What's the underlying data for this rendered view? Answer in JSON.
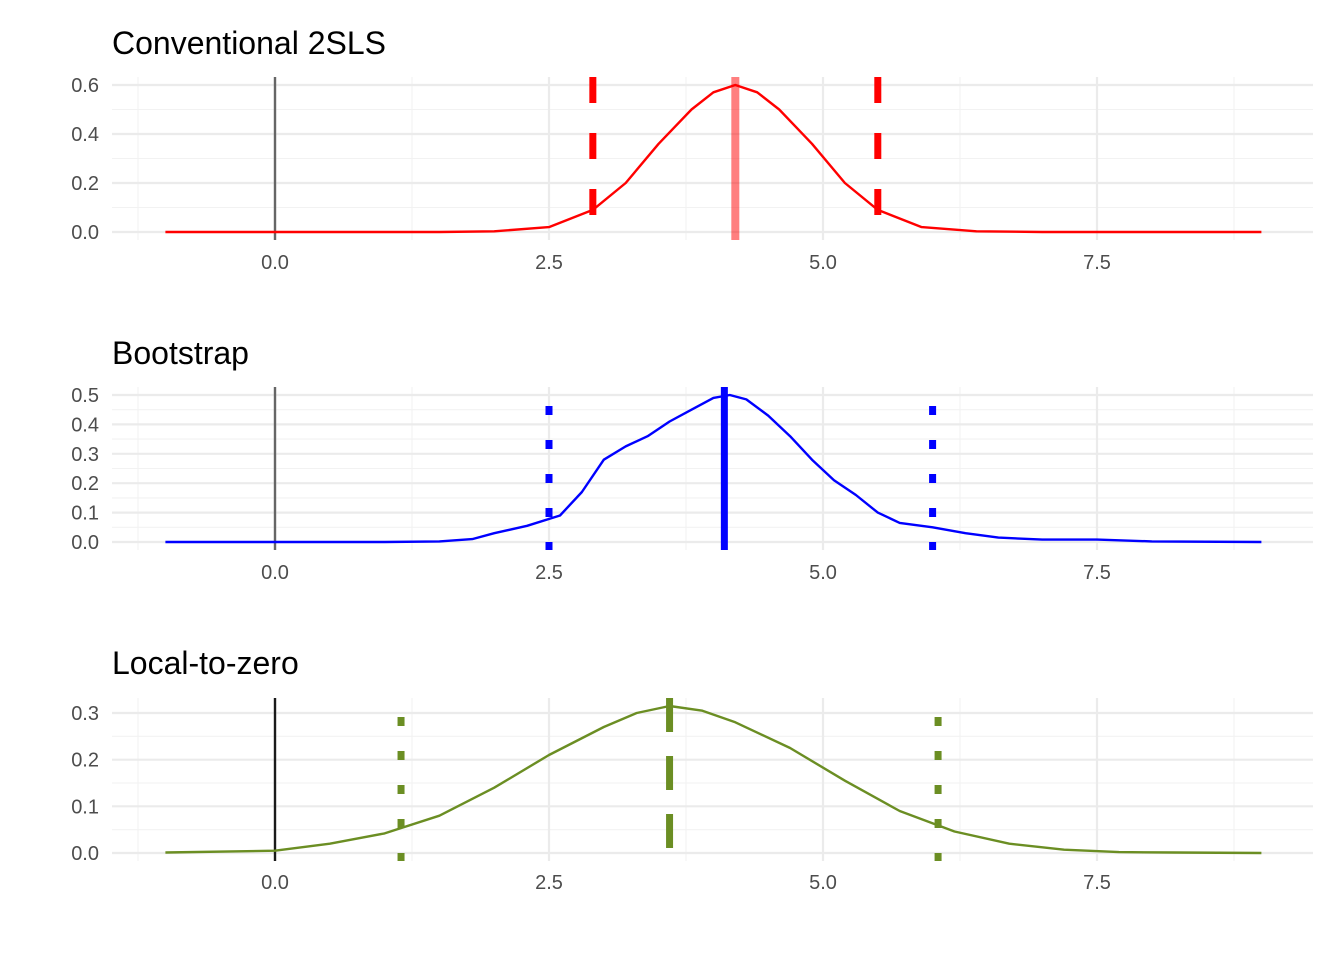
{
  "chart_data": [
    {
      "type": "line",
      "title": "Conventional 2SLS",
      "color": "#ff0000",
      "xlim": [
        -1.0,
        9.0
      ],
      "ylim": [
        0,
        0.6
      ],
      "x_ticks": [
        0.0,
        2.5,
        5.0,
        7.5
      ],
      "x_tick_labels": [
        "0.0",
        "2.5",
        "5.0",
        "7.5"
      ],
      "y_ticks": [
        0.0,
        0.2,
        0.4,
        0.6
      ],
      "y_tick_labels": [
        "0.0",
        "0.2",
        "0.4",
        "0.6"
      ],
      "density": {
        "x": [
          -1.0,
          0.0,
          1.0,
          1.5,
          2.0,
          2.5,
          2.9,
          3.2,
          3.5,
          3.8,
          4.0,
          4.2,
          4.4,
          4.6,
          4.9,
          5.2,
          5.5,
          5.9,
          6.4,
          7.0,
          8.0,
          9.0
        ],
        "y": [
          0.0,
          0.0,
          0.0,
          0.0,
          0.003,
          0.02,
          0.09,
          0.2,
          0.36,
          0.5,
          0.57,
          0.6,
          0.57,
          0.5,
          0.36,
          0.2,
          0.09,
          0.02,
          0.003,
          0.0,
          0.0,
          0.0
        ]
      },
      "zero_line": 0.0,
      "point_estimate": 4.2,
      "interval": [
        2.9,
        5.5
      ],
      "interval_style": "dashed"
    },
    {
      "type": "line",
      "title": "Bootstrap",
      "color": "#0000ff",
      "xlim": [
        -1.0,
        9.0
      ],
      "ylim": [
        0,
        0.5
      ],
      "x_ticks": [
        0.0,
        2.5,
        5.0,
        7.5
      ],
      "x_tick_labels": [
        "0.0",
        "2.5",
        "5.0",
        "7.5"
      ],
      "y_ticks": [
        0.0,
        0.1,
        0.2,
        0.3,
        0.4,
        0.5
      ],
      "y_tick_labels": [
        "0.0",
        "0.1",
        "0.2",
        "0.3",
        "0.4",
        "0.5"
      ],
      "density": {
        "x": [
          -1.0,
          0.0,
          1.0,
          1.5,
          1.8,
          2.0,
          2.3,
          2.6,
          2.8,
          3.0,
          3.2,
          3.4,
          3.6,
          3.8,
          4.0,
          4.15,
          4.3,
          4.5,
          4.7,
          4.9,
          5.1,
          5.3,
          5.5,
          5.7,
          6.0,
          6.3,
          6.6,
          7.0,
          7.5,
          8.0,
          9.0
        ],
        "y": [
          0.0,
          0.0,
          0.0,
          0.002,
          0.01,
          0.03,
          0.055,
          0.09,
          0.17,
          0.28,
          0.325,
          0.36,
          0.41,
          0.45,
          0.49,
          0.5,
          0.485,
          0.43,
          0.36,
          0.28,
          0.21,
          0.16,
          0.1,
          0.065,
          0.05,
          0.03,
          0.015,
          0.008,
          0.008,
          0.002,
          0.0
        ]
      },
      "zero_line": 0.0,
      "point_estimate": 4.1,
      "interval": [
        2.5,
        6.0
      ],
      "interval_style": "dotted"
    },
    {
      "type": "line",
      "title": "Local-to-zero",
      "color": "#6b8e23",
      "xlim": [
        -1.0,
        9.0
      ],
      "ylim": [
        0,
        0.3
      ],
      "x_ticks": [
        0.0,
        2.5,
        5.0,
        7.5
      ],
      "x_tick_labels": [
        "0.0",
        "2.5",
        "5.0",
        "7.5"
      ],
      "y_ticks": [
        0.0,
        0.1,
        0.2,
        0.3
      ],
      "y_tick_labels": [
        "0.0",
        "0.1",
        "0.2",
        "0.3"
      ],
      "density": {
        "x": [
          -1.0,
          0.0,
          0.5,
          1.0,
          1.5,
          2.0,
          2.5,
          3.0,
          3.3,
          3.6,
          3.9,
          4.2,
          4.7,
          5.2,
          5.7,
          6.2,
          6.7,
          7.2,
          7.7,
          8.2,
          9.0
        ],
        "y": [
          0.001,
          0.005,
          0.02,
          0.042,
          0.08,
          0.14,
          0.21,
          0.27,
          0.3,
          0.315,
          0.305,
          0.28,
          0.225,
          0.155,
          0.09,
          0.046,
          0.02,
          0.007,
          0.002,
          0.001,
          0.0
        ]
      },
      "zero_line": 0.0,
      "point_estimate": 3.6,
      "interval": [
        1.15,
        6.05
      ],
      "interval_style": "dotted"
    }
  ]
}
